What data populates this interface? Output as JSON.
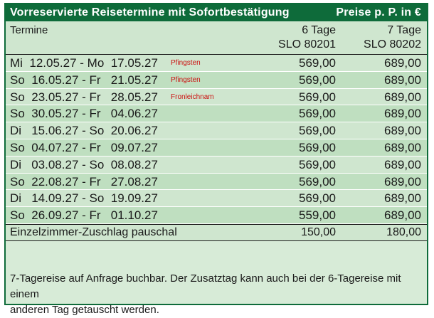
{
  "title": "Vorreservierte Reisetermine mit Sofortbestätigung",
  "price_note": "Preise p. P. in €",
  "header": {
    "termine": "Termine",
    "col6_line1": "6 Tage",
    "col6_line2": "SLO 80201",
    "col7_line1": "7 Tage",
    "col7_line2": "SLO 80202"
  },
  "rows": [
    {
      "date": "Mi  12.05.27 - Mo  17.05.27",
      "note": "Pfingsten",
      "p6": "569,00",
      "p7": "689,00"
    },
    {
      "date": "So  16.05.27 - Fr   21.05.27",
      "note": "Pfingsten",
      "p6": "569,00",
      "p7": "689,00"
    },
    {
      "date": "So  23.05.27 - Fr   28.05.27",
      "note": "Fronleichnam",
      "p6": "569,00",
      "p7": "689,00"
    },
    {
      "date": "So  30.05.27 - Fr   04.06.27",
      "note": "",
      "p6": "569,00",
      "p7": "689,00"
    },
    {
      "date": "Di   15.06.27 - So  20.06.27",
      "note": "",
      "p6": "569,00",
      "p7": "689,00"
    },
    {
      "date": "So  04.07.27 - Fr   09.07.27",
      "note": "",
      "p6": "569,00",
      "p7": "689,00"
    },
    {
      "date": "Di   03.08.27 - So  08.08.27",
      "note": "",
      "p6": "569,00",
      "p7": "689,00"
    },
    {
      "date": "So  22.08.27 - Fr   27.08.27",
      "note": "",
      "p6": "569,00",
      "p7": "689,00"
    },
    {
      "date": "Di   14.09.27 - So  19.09.27",
      "note": "",
      "p6": "569,00",
      "p7": "689,00"
    },
    {
      "date": "So  26.09.27 - Fr   01.10.27",
      "note": "",
      "p6": "559,00",
      "p7": "689,00"
    }
  ],
  "single_room": {
    "label": "Einzelzimmer-Zuschlag pauschal",
    "p6": "150,00",
    "p7": "180,00"
  },
  "footnote_line1": "7-Tagereise auf Anfrage buchbar. Der Zusatztag kann auch bei der 6-Tagereise mit einem",
  "footnote_line2": "anderen Tag getauscht werden.",
  "colors": {
    "title_bar": "#0e6b3a",
    "row_light": "#cfe6cf",
    "row_dark": "#bfdfc0",
    "holiday_note": "#cc1010"
  }
}
